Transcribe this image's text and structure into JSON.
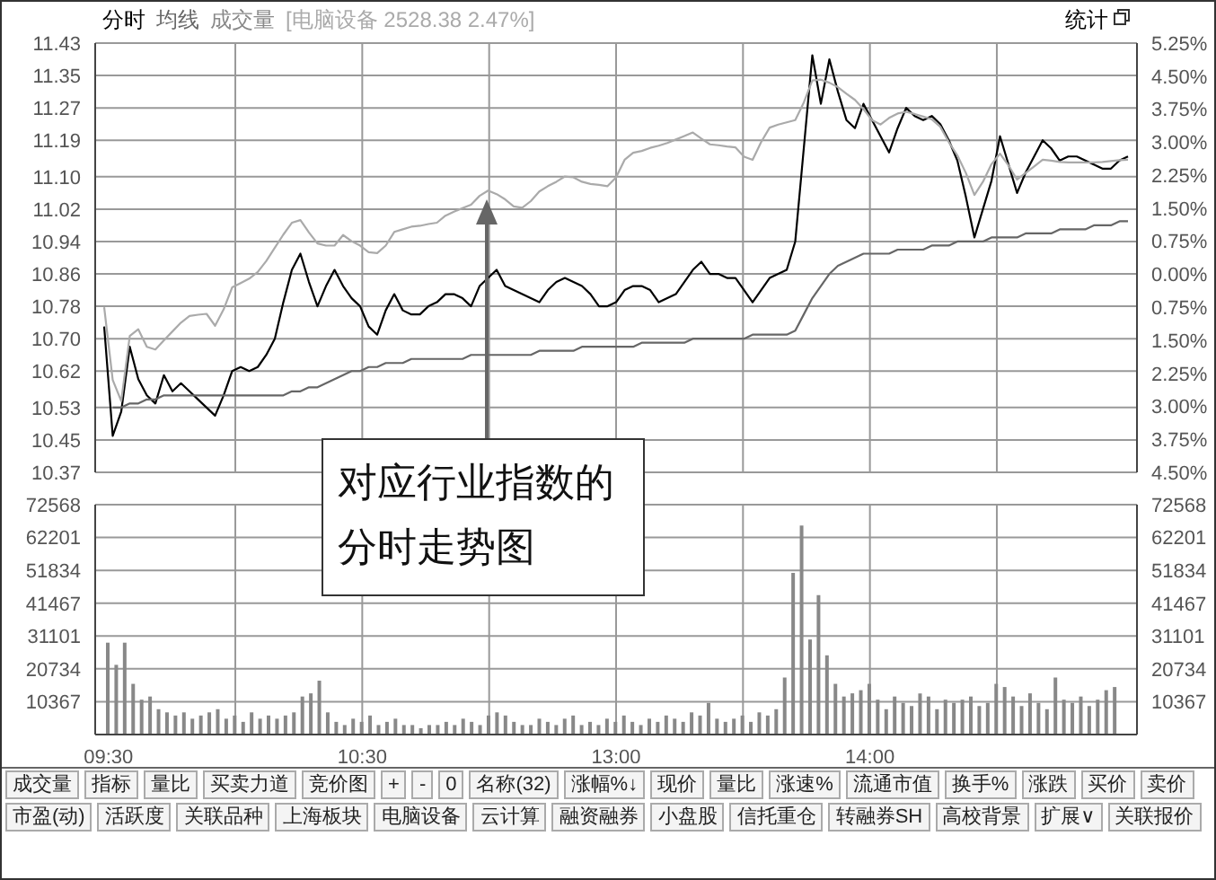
{
  "chart_data": [
    {
      "type": "line",
      "categories": [
        null,
        null,
        null,
        null,
        null,
        null,
        null,
        null,
        null,
        null,
        null,
        null,
        null,
        null,
        null,
        null,
        null,
        null,
        null,
        null,
        null,
        null,
        null,
        null,
        null,
        null,
        null,
        null,
        null,
        null,
        null,
        null,
        null,
        null,
        null,
        null,
        null,
        null,
        null,
        null,
        null,
        null,
        null,
        null,
        null,
        null,
        null,
        null,
        null,
        null,
        null,
        null,
        null,
        null,
        null,
        null,
        null,
        null,
        null,
        null,
        null,
        null,
        null,
        null,
        null,
        null,
        null,
        null,
        null,
        null,
        null,
        null,
        null,
        null,
        null,
        null,
        null,
        null,
        null,
        null,
        null,
        null,
        null,
        null,
        null,
        null,
        null,
        null,
        null,
        null,
        null,
        null,
        null,
        null,
        null,
        null,
        null,
        null,
        null,
        null,
        null,
        null,
        null,
        null,
        null,
        null,
        null,
        null,
        null,
        null,
        null,
        null,
        null,
        null,
        null,
        null,
        null,
        null,
        null,
        null,
        null
      ],
      "ylim": [
        10.37,
        11.43
      ],
      "yticks": [
        {
          "value": 10.37,
          "label": "10.37"
        },
        {
          "value": 10.45,
          "label": "10.45"
        },
        {
          "value": 10.53,
          "label": "10.53"
        },
        {
          "value": 10.62,
          "label": "10.62"
        },
        {
          "value": 10.7,
          "label": "10.70"
        },
        {
          "value": 10.78,
          "label": "10.78"
        },
        {
          "value": 10.86,
          "label": "10.86"
        },
        {
          "value": 10.94,
          "label": "10.94"
        },
        {
          "value": 11.02,
          "label": "11.02"
        },
        {
          "value": 11.1,
          "label": "11.10"
        },
        {
          "value": 11.19,
          "label": "11.19"
        },
        {
          "value": 11.27,
          "label": "11.27"
        },
        {
          "value": 11.35,
          "label": "11.35"
        },
        {
          "value": 11.43,
          "label": "11.43"
        }
      ],
      "y2lim": [
        -4.5,
        5.25
      ],
      "y2ticks": [
        {
          "value": -4.5,
          "label": "4.50%"
        },
        {
          "value": -3.75,
          "label": "3.75%"
        },
        {
          "value": -3,
          "label": "3.00%"
        },
        {
          "value": -2.25,
          "label": "2.25%"
        },
        {
          "value": -1.5,
          "label": "1.50%"
        },
        {
          "value": -0.75,
          "label": "0.75%"
        },
        {
          "value": 0,
          "label": "0.00%"
        },
        {
          "value": 0.75,
          "label": "0.75%"
        },
        {
          "value": 1.5,
          "label": "1.50%"
        },
        {
          "value": 2.25,
          "label": "2.25%"
        },
        {
          "value": 3,
          "label": "3.00%"
        },
        {
          "value": 3.75,
          "label": "3.75%"
        },
        {
          "value": 4.5,
          "label": "4.50%"
        },
        {
          "value": 5.25,
          "label": "5.25%"
        }
      ],
      "grid": true,
      "legend": "top left",
      "marker": "none",
      "series": [
        {
          "name": "分时",
          "color": "#000000",
          "values": [
            10.73,
            10.46,
            10.52,
            10.68,
            10.6,
            10.56,
            10.54,
            10.61,
            10.57,
            10.59,
            10.57,
            10.55,
            10.53,
            10.51,
            10.56,
            10.62,
            10.63,
            10.62,
            10.63,
            10.66,
            10.7,
            10.79,
            10.87,
            10.91,
            10.84,
            10.78,
            10.83,
            10.87,
            10.83,
            10.8,
            10.78,
            10.73,
            10.71,
            10.77,
            10.81,
            10.77,
            10.76,
            10.76,
            10.78,
            10.79,
            10.81,
            10.81,
            10.8,
            10.78,
            10.83,
            10.85,
            10.87,
            10.83,
            10.82,
            10.81,
            10.8,
            10.79,
            10.82,
            10.84,
            10.85,
            10.84,
            10.83,
            10.81,
            10.78,
            10.78,
            10.79,
            10.82,
            10.83,
            10.83,
            10.82,
            10.79,
            10.8,
            10.81,
            10.84,
            10.87,
            10.89,
            10.86,
            10.86,
            10.85,
            10.85,
            10.82,
            10.79,
            10.82,
            10.85,
            10.86,
            10.87,
            10.94,
            11.17,
            11.4,
            11.28,
            11.39,
            11.31,
            11.24,
            11.22,
            11.28,
            11.24,
            11.2,
            11.16,
            11.22,
            11.27,
            11.25,
            11.24,
            11.25,
            11.23,
            11.19,
            11.14,
            11.05,
            10.95,
            11.02,
            11.09,
            11.2,
            11.13,
            11.06,
            11.11,
            11.15,
            11.19,
            11.17,
            11.14,
            11.15,
            11.15,
            11.14,
            11.13,
            11.12,
            11.12,
            11.14,
            11.15
          ]
        },
        {
          "name": "均线",
          "color": "#666666",
          "values": [
            null,
            10.53,
            10.53,
            10.54,
            10.54,
            10.55,
            10.55,
            10.56,
            10.56,
            10.56,
            10.56,
            10.56,
            10.56,
            10.56,
            10.56,
            10.56,
            10.56,
            10.56,
            10.56,
            10.56,
            10.56,
            10.56,
            10.57,
            10.57,
            10.58,
            10.58,
            10.59,
            10.6,
            10.61,
            10.62,
            10.62,
            10.63,
            10.63,
            10.64,
            10.64,
            10.64,
            10.65,
            10.65,
            10.65,
            10.65,
            10.65,
            10.65,
            10.65,
            10.66,
            10.66,
            10.66,
            10.66,
            10.66,
            10.66,
            10.66,
            10.66,
            10.67,
            10.67,
            10.67,
            10.67,
            10.67,
            10.68,
            10.68,
            10.68,
            10.68,
            10.68,
            10.68,
            10.68,
            10.69,
            10.69,
            10.69,
            10.69,
            10.69,
            10.69,
            10.7,
            10.7,
            10.7,
            10.7,
            10.7,
            10.7,
            10.7,
            10.71,
            10.71,
            10.71,
            10.71,
            10.71,
            10.72,
            10.76,
            10.8,
            10.83,
            10.86,
            10.88,
            10.89,
            10.9,
            10.91,
            10.91,
            10.91,
            10.91,
            10.92,
            10.92,
            10.92,
            10.92,
            10.93,
            10.93,
            10.93,
            10.94,
            10.94,
            10.94,
            10.94,
            10.95,
            10.95,
            10.95,
            10.95,
            10.96,
            10.96,
            10.96,
            10.96,
            10.97,
            10.97,
            10.97,
            10.97,
            10.98,
            10.98,
            10.98,
            10.99,
            10.99
          ]
        },
        {
          "name": "[电脑设备 2528.38 2.47%]",
          "color": "#aaaaaa",
          "axis": "y2",
          "values": [
            -0.75,
            -2.4,
            -2.88,
            -1.4,
            -1.25,
            -1.65,
            -1.71,
            -1.5,
            -1.3,
            -1.1,
            -0.95,
            -0.92,
            -0.9,
            -1.17,
            -0.8,
            -0.3,
            -0.2,
            -0.1,
            0.05,
            0.3,
            0.6,
            0.9,
            1.17,
            1.23,
            0.95,
            0.7,
            0.65,
            0.65,
            0.89,
            0.75,
            0.65,
            0.5,
            0.48,
            0.65,
            0.96,
            1.02,
            1.08,
            1.1,
            1.14,
            1.17,
            1.33,
            1.42,
            1.5,
            1.58,
            1.78,
            1.9,
            1.82,
            1.7,
            1.54,
            1.51,
            1.66,
            1.88,
            2.0,
            2.1,
            2.22,
            2.2,
            2.1,
            2.05,
            2.03,
            2.0,
            2.2,
            2.6,
            2.76,
            2.8,
            2.87,
            2.92,
            2.98,
            3.06,
            3.14,
            3.22,
            3.08,
            2.95,
            2.93,
            2.9,
            2.88,
            2.67,
            2.6,
            3.0,
            3.33,
            3.4,
            3.45,
            3.5,
            3.9,
            4.4,
            4.42,
            4.35,
            4.25,
            4.1,
            3.96,
            3.75,
            3.5,
            3.4,
            3.55,
            3.65,
            3.69,
            3.64,
            3.58,
            3.52,
            3.35,
            3.0,
            2.7,
            2.3,
            1.8,
            2.1,
            2.5,
            2.74,
            2.47,
            2.15,
            2.3,
            2.45,
            2.6,
            2.58,
            2.55,
            2.54,
            2.54,
            2.54,
            2.54,
            2.55,
            2.57,
            2.59,
            2.6
          ]
        }
      ],
      "annotations": [
        "统计",
        "对应行业指数的分时走势图"
      ]
    },
    {
      "type": "bar",
      "categories": [
        "09:30",
        null,
        null,
        null,
        null,
        null,
        null,
        null,
        null,
        null,
        null,
        null,
        null,
        null,
        null,
        null,
        null,
        null,
        null,
        null,
        null,
        null,
        null,
        null,
        null,
        null,
        null,
        null,
        null,
        null,
        "10:30",
        null,
        null,
        null,
        null,
        null,
        null,
        null,
        null,
        null,
        null,
        null,
        null,
        null,
        null,
        null,
        null,
        null,
        null,
        null,
        null,
        null,
        null,
        null,
        null,
        null,
        null,
        null,
        null,
        null,
        "13:00",
        null,
        null,
        null,
        null,
        null,
        null,
        null,
        null,
        null,
        null,
        null,
        null,
        null,
        null,
        null,
        null,
        null,
        null,
        null,
        null,
        null,
        null,
        null,
        null,
        null,
        null,
        null,
        null,
        null,
        "14:00",
        null,
        null,
        null,
        null,
        null,
        null,
        null,
        null,
        null,
        null,
        null,
        null,
        null,
        null,
        null,
        null,
        null,
        null,
        null,
        null,
        null,
        null,
        null,
        null,
        null,
        null,
        null,
        null,
        null,
        null
      ],
      "ylim": [
        0,
        72568
      ],
      "yticks": [
        10367,
        20734,
        31101,
        41467,
        51834,
        62201,
        72568
      ],
      "y2lim": [
        0,
        72568
      ],
      "y2ticks": [
        10367,
        20734,
        31101,
        41467,
        51834,
        62201,
        72568
      ],
      "grid": true,
      "series": [
        {
          "name": "成交量",
          "color": "#888888",
          "values": [
            29000,
            22000,
            29000,
            16000,
            11000,
            12000,
            8000,
            7000,
            6000,
            7000,
            5000,
            6000,
            7000,
            8000,
            5000,
            6000,
            4000,
            7000,
            5000,
            6000,
            5000,
            6000,
            7000,
            12000,
            13000,
            17000,
            7000,
            4000,
            3000,
            5000,
            4000,
            6000,
            3000,
            4000,
            5000,
            3000,
            3000,
            2000,
            3000,
            3000,
            4000,
            3000,
            5000,
            4000,
            3000,
            6000,
            7000,
            6000,
            4000,
            3000,
            3000,
            5000,
            4000,
            3000,
            5000,
            6000,
            3000,
            4000,
            3000,
            5000,
            4000,
            6000,
            4000,
            3000,
            5000,
            4000,
            6000,
            5000,
            4000,
            7000,
            6000,
            10000,
            5000,
            4000,
            5000,
            6000,
            4000,
            7000,
            6000,
            8000,
            18000,
            51000,
            66000,
            30000,
            44000,
            25000,
            16000,
            12000,
            13000,
            14000,
            16000,
            11000,
            8000,
            12000,
            10000,
            9000,
            13000,
            12000,
            8000,
            11000,
            10000,
            11000,
            12000,
            9000,
            10000,
            16000,
            15000,
            12000,
            9000,
            13000,
            10000,
            8000,
            18000,
            11000,
            10000,
            12000,
            9000,
            11000,
            14000,
            15000,
            null
          ]
        }
      ],
      "annotations": [
        "成交量",
        "指标",
        "量比",
        "买卖力道",
        "竞价图",
        "+",
        "-",
        "0",
        "名称(32)",
        "涨幅%↓",
        "现价",
        "量比",
        "涨速%",
        "流通市值",
        "换手%",
        "涨跌",
        "买价",
        "卖价",
        "市盈(动)",
        "活跃度",
        "关联品种",
        "上海板块",
        "电脑设备",
        "云计算",
        "融资融券",
        "小盘股",
        "信托重仓",
        "转融券SH",
        "高校背景",
        "扩展∨",
        "关联报价"
      ]
    }
  ]
}
